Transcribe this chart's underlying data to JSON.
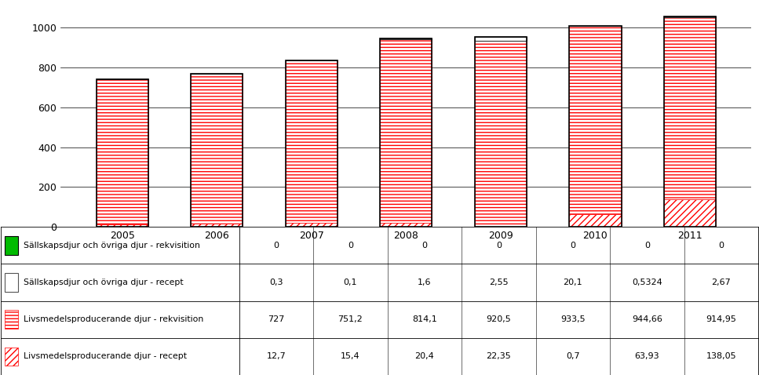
{
  "years": [
    "2005",
    "2006",
    "2007",
    "2008",
    "2009",
    "2010",
    "2011"
  ],
  "series": {
    "sallskap_rekv": [
      0,
      0,
      0,
      0,
      0,
      0,
      0
    ],
    "sallskap_recept": [
      0.3,
      0.1,
      1.6,
      2.55,
      20.1,
      0.5324,
      2.67
    ],
    "livsmedel_rekv": [
      727,
      751.2,
      814.1,
      920.5,
      933.5,
      944.66,
      914.95
    ],
    "livsmedel_recept": [
      12.7,
      15.4,
      20.4,
      22.35,
      0.7,
      63.93,
      138.05
    ]
  },
  "labels": [
    "Sällskapsdjur och övriga djur - rekvisition",
    "Sällskapsdjur och övriga djur - recept",
    "Livsmedelsproducerande djur - rekvisition",
    "Livsmedelsproducerande djur - recept"
  ],
  "table_values": {
    "sallskap_rekv": [
      "0",
      "0",
      "0",
      "0",
      "0",
      "0",
      "0"
    ],
    "sallskap_recept": [
      "0,3",
      "0,1",
      "1,6",
      "2,55",
      "20,1",
      "0,5324",
      "2,67"
    ],
    "livsmedel_rekv": [
      "727",
      "751,2",
      "814,1",
      "920,5",
      "933,5",
      "944,66",
      "914,95"
    ],
    "livsmedel_recept": [
      "12,7",
      "15,4",
      "20,4",
      "22,35",
      "0,7",
      "63,93",
      "138,05"
    ]
  },
  "ylim": [
    0,
    1100
  ],
  "yticks": [
    0,
    200,
    400,
    600,
    800,
    1000
  ],
  "background_color": "#ffffff",
  "bar_width": 0.55
}
